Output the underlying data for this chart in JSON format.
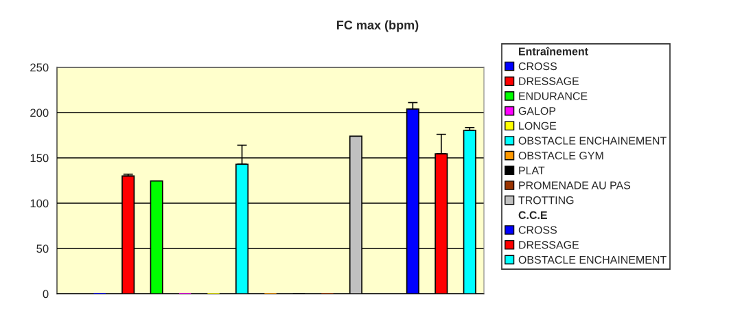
{
  "chart_data": {
    "type": "bar",
    "title": "FC max (bpm)",
    "categories": [
      null,
      null,
      null,
      null,
      null,
      null,
      null,
      null,
      null,
      null,
      null,
      null,
      null,
      null,
      null
    ],
    "series": [
      {
        "name": "CROSS",
        "color": "#0000ff",
        "values": [
          null,
          0,
          null,
          null,
          null,
          null,
          null,
          null,
          null,
          null,
          null,
          null,
          null,
          null,
          null
        ]
      },
      {
        "name": "DRESSAGE",
        "color": "#ff0000",
        "values": [
          null,
          null,
          130,
          null,
          null,
          null,
          null,
          null,
          null,
          null,
          null,
          null,
          null,
          null,
          null
        ],
        "errors": [
          null,
          null,
          [
            130,
            132
          ],
          null,
          null,
          null,
          null,
          null,
          null,
          null,
          null,
          null,
          null,
          null,
          null
        ]
      },
      {
        "name": "ENDURANCE",
        "color": "#00ff00",
        "values": [
          null,
          null,
          null,
          124.5,
          null,
          null,
          null,
          null,
          null,
          null,
          null,
          null,
          null,
          null,
          null
        ]
      },
      {
        "name": "GALOP",
        "color": "#ff00ff",
        "values": [
          null,
          null,
          null,
          null,
          0,
          null,
          null,
          null,
          null,
          null,
          null,
          null,
          null,
          null,
          null
        ]
      },
      {
        "name": "LONGE",
        "color": "#ffff00",
        "values": [
          null,
          null,
          null,
          null,
          null,
          0,
          null,
          null,
          null,
          null,
          null,
          null,
          null,
          null,
          null
        ]
      },
      {
        "name": "OBSTACLE ENCHAINEMENT",
        "color": "#00ffff",
        "values": [
          null,
          null,
          null,
          null,
          null,
          null,
          143,
          null,
          null,
          null,
          null,
          null,
          null,
          null,
          null
        ],
        "errors": [
          null,
          null,
          null,
          null,
          null,
          null,
          [
            143,
            164
          ],
          null,
          null,
          null,
          null,
          null,
          null,
          null,
          null
        ]
      },
      {
        "name": "OBSTACLE GYM",
        "color": "#ff9900",
        "values": [
          null,
          null,
          null,
          null,
          null,
          null,
          null,
          0,
          null,
          null,
          null,
          null,
          null,
          null,
          null
        ]
      },
      {
        "name": "PLAT",
        "color": "#000000",
        "values": [
          null,
          null,
          null,
          null,
          null,
          null,
          null,
          null,
          0,
          null,
          null,
          null,
          null,
          null,
          null
        ]
      },
      {
        "name": "PROMENADE AU PAS",
        "color": "#993300",
        "values": [
          null,
          null,
          null,
          null,
          null,
          null,
          null,
          null,
          null,
          0,
          null,
          null,
          null,
          null,
          null
        ]
      },
      {
        "name": "TROTTING",
        "color": "#c0c0c0",
        "values": [
          null,
          null,
          null,
          null,
          null,
          null,
          null,
          null,
          null,
          null,
          174,
          null,
          null,
          null,
          null
        ]
      },
      {
        "name": "CROSS",
        "color": "#0000ff",
        "values": [
          null,
          null,
          null,
          null,
          null,
          null,
          null,
          null,
          null,
          null,
          null,
          null,
          204,
          null,
          null
        ],
        "errors": [
          null,
          null,
          null,
          null,
          null,
          null,
          null,
          null,
          null,
          null,
          null,
          null,
          [
            204,
            211
          ],
          null,
          null
        ]
      },
      {
        "name": "DRESSAGE",
        "color": "#ff0000",
        "values": [
          null,
          null,
          null,
          null,
          null,
          null,
          null,
          null,
          null,
          null,
          null,
          null,
          null,
          154.5,
          null
        ],
        "errors": [
          null,
          null,
          null,
          null,
          null,
          null,
          null,
          null,
          null,
          null,
          null,
          null,
          null,
          [
            154.5,
            176
          ],
          null
        ]
      },
      {
        "name": "OBSTACLE ENCHAINEMENT",
        "color": "#00ffff",
        "values": [
          null,
          null,
          null,
          null,
          null,
          null,
          null,
          null,
          null,
          null,
          null,
          null,
          null,
          null,
          180.5
        ],
        "errors": [
          null,
          null,
          null,
          null,
          null,
          null,
          null,
          null,
          null,
          null,
          null,
          null,
          null,
          null,
          [
            180.5,
            183.5
          ]
        ]
      }
    ],
    "legend_title": "Entraînement",
    "annotations": [
      "C.C.E"
    ],
    "ylim": [
      0,
      250
    ],
    "yticks": [
      0,
      50,
      100,
      150,
      200,
      250
    ],
    "grid": "y",
    "legend": "right",
    "tick_labels": "y"
  }
}
